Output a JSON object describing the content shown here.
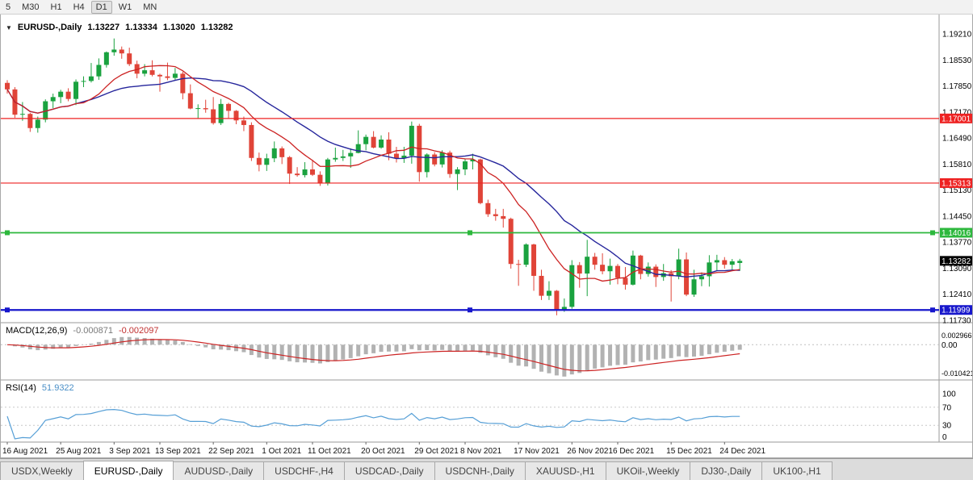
{
  "toolbar": {
    "timeframes": [
      {
        "label": "5",
        "active": false
      },
      {
        "label": "M30",
        "active": false
      },
      {
        "label": "H1",
        "active": false
      },
      {
        "label": "H4",
        "active": false
      },
      {
        "label": "D1",
        "active": true
      },
      {
        "label": "W1",
        "active": false
      },
      {
        "label": "MN",
        "active": false
      }
    ]
  },
  "chart_header": {
    "collapse_icon": "▼",
    "title": "EURUSD-,Daily",
    "open": "1.13227",
    "high": "1.13334",
    "low": "1.13020",
    "close": "1.13282"
  },
  "price_axis": [
    "1.19210",
    "1.18530",
    "1.17850",
    "1.17170",
    "1.16490",
    "1.15810",
    "1.15130",
    "1.14450",
    "1.13770",
    "1.13090",
    "1.12410",
    "1.11730"
  ],
  "hlines": [
    {
      "price": 1.17001,
      "label": "1.17001",
      "color": "#ee2222",
      "width": 1.2,
      "handles": false
    },
    {
      "price": 1.15313,
      "label": "1.15313",
      "color": "#ee2222",
      "width": 1.2,
      "handles": false
    },
    {
      "price": 1.14016,
      "label": "1.14016",
      "color": "#2db83d",
      "width": 1.8,
      "handles": true
    },
    {
      "price": 1.11999,
      "label": "1.11999",
      "color": "#1717cc",
      "width": 2.2,
      "handles": true
    }
  ],
  "current_price": {
    "label": "1.13282",
    "price": 1.13282,
    "tag_color": "#000000"
  },
  "macd_panel": {
    "title": "MACD(12,26,9)",
    "value_macd": "-0.000871",
    "value_signal": "-0.002097",
    "axis_max": "0.002966",
    "axis_zero": "0.00",
    "axis_min": "-0.010421",
    "max": 0.002966,
    "min": -0.010421,
    "histogram_color": "#b2b2b2",
    "signal_color": "#cc2222"
  },
  "rsi_panel": {
    "title": "RSI(14)",
    "value": "51.9322",
    "axis": [
      "100",
      "70",
      "30",
      "0"
    ],
    "levels": [
      70,
      30
    ],
    "line_color": "#569fd6"
  },
  "x_axis_labels": [
    "16 Aug 2021",
    "25 Aug 2021",
    "3 Sep 2021",
    "13 Sep 2021",
    "22 Sep 2021",
    "1 Oct 2021",
    "11 Oct 2021",
    "20 Oct 2021",
    "29 Oct 2021",
    "8 Nov 2021",
    "17 Nov 2021",
    "26 Nov 2021",
    "6 Dec 2021",
    "15 Dec 2021",
    "24 Dec 2021"
  ],
  "tabs": [
    {
      "label": "USDX,Weekly",
      "active": false
    },
    {
      "label": "EURUSD-,Daily",
      "active": true
    },
    {
      "label": "AUDUSD-,Daily",
      "active": false
    },
    {
      "label": "USDCHF-,H4",
      "active": false
    },
    {
      "label": "USDCAD-,Daily",
      "active": false
    },
    {
      "label": "USDCNH-,Daily",
      "active": false
    },
    {
      "label": "XAUUSD-,H1",
      "active": false
    },
    {
      "label": "UKOil-,Weekly",
      "active": false
    },
    {
      "label": "DJ30-,Daily",
      "active": false
    },
    {
      "label": "UK100-,H1",
      "active": false
    }
  ],
  "chart_data": {
    "type": "candlestick",
    "title": "EURUSD-,Daily",
    "price_min": 1.1173,
    "price_max": 1.1921,
    "up_color": "#1aa23f",
    "down_color": "#e04438",
    "ma_fast": {
      "period": 10,
      "color": "#cc2222"
    },
    "ma_slow": {
      "period": 20,
      "color": "#26269c"
    },
    "indicators": [
      "MACD(12,26,9)",
      "RSI(14)"
    ],
    "candles": [
      [
        "2021-08-16",
        1.1793,
        1.18,
        1.1765,
        1.1776
      ],
      [
        "2021-08-17",
        1.1776,
        1.1782,
        1.1702,
        1.171
      ],
      [
        "2021-08-18",
        1.171,
        1.1743,
        1.1694,
        1.1712
      ],
      [
        "2021-08-19",
        1.1712,
        1.1715,
        1.1665,
        1.1675
      ],
      [
        "2021-08-20",
        1.1675,
        1.1705,
        1.1663,
        1.1697
      ],
      [
        "2021-08-23",
        1.1697,
        1.175,
        1.169,
        1.1745
      ],
      [
        "2021-08-24",
        1.1745,
        1.1765,
        1.1727,
        1.1756
      ],
      [
        "2021-08-25",
        1.1756,
        1.1775,
        1.174,
        1.177
      ],
      [
        "2021-08-26",
        1.177,
        1.1779,
        1.1745,
        1.1751
      ],
      [
        "2021-08-27",
        1.1751,
        1.1802,
        1.1735,
        1.1796
      ],
      [
        "2021-08-30",
        1.1796,
        1.181,
        1.1782,
        1.1798
      ],
      [
        "2021-08-31",
        1.1798,
        1.1845,
        1.1794,
        1.181
      ],
      [
        "2021-09-01",
        1.181,
        1.1857,
        1.1801,
        1.184
      ],
      [
        "2021-09-02",
        1.184,
        1.1875,
        1.1833,
        1.1873
      ],
      [
        "2021-09-03",
        1.1873,
        1.1909,
        1.1864,
        1.188
      ],
      [
        "2021-09-06",
        1.188,
        1.1888,
        1.1856,
        1.187
      ],
      [
        "2021-09-07",
        1.187,
        1.1885,
        1.1837,
        1.1842
      ],
      [
        "2021-09-08",
        1.1842,
        1.1851,
        1.1805,
        1.1817
      ],
      [
        "2021-09-09",
        1.1817,
        1.1842,
        1.181,
        1.1826
      ],
      [
        "2021-09-10",
        1.1826,
        1.1852,
        1.181,
        1.1814
      ],
      [
        "2021-09-13",
        1.1814,
        1.1817,
        1.177,
        1.181
      ],
      [
        "2021-09-14",
        1.181,
        1.1846,
        1.18,
        1.1806
      ],
      [
        "2021-09-15",
        1.1806,
        1.1832,
        1.18,
        1.1817
      ],
      [
        "2021-09-16",
        1.1817,
        1.1822,
        1.175,
        1.1766
      ],
      [
        "2021-09-17",
        1.1766,
        1.1789,
        1.1724,
        1.1726
      ],
      [
        "2021-09-20",
        1.1726,
        1.1737,
        1.17,
        1.1727
      ],
      [
        "2021-09-21",
        1.1727,
        1.1749,
        1.1715,
        1.1724
      ],
      [
        "2021-09-22",
        1.1724,
        1.1756,
        1.1684,
        1.1688
      ],
      [
        "2021-09-23",
        1.1688,
        1.1751,
        1.1683,
        1.1738
      ],
      [
        "2021-09-24",
        1.1738,
        1.1741,
        1.1701,
        1.172
      ],
      [
        "2021-09-27",
        1.172,
        1.1722,
        1.1685,
        1.1695
      ],
      [
        "2021-09-28",
        1.1695,
        1.1705,
        1.1667,
        1.1683
      ],
      [
        "2021-09-29",
        1.1683,
        1.169,
        1.1589,
        1.1597
      ],
      [
        "2021-09-30",
        1.1597,
        1.1611,
        1.1562,
        1.1579
      ],
      [
        "2021-10-01",
        1.1579,
        1.1608,
        1.1563,
        1.1596
      ],
      [
        "2021-10-04",
        1.1596,
        1.164,
        1.1586,
        1.1622
      ],
      [
        "2021-10-05",
        1.1622,
        1.1627,
        1.1581,
        1.1599
      ],
      [
        "2021-10-06",
        1.1599,
        1.1602,
        1.1529,
        1.1556
      ],
      [
        "2021-10-07",
        1.1556,
        1.1573,
        1.1548,
        1.1552
      ],
      [
        "2021-10-08",
        1.1552,
        1.1586,
        1.1546,
        1.1567
      ],
      [
        "2021-10-11",
        1.1567,
        1.1592,
        1.155,
        1.1553
      ],
      [
        "2021-10-12",
        1.1553,
        1.1562,
        1.1524,
        1.153
      ],
      [
        "2021-10-13",
        1.153,
        1.1597,
        1.1525,
        1.1593
      ],
      [
        "2021-10-14",
        1.1593,
        1.1624,
        1.1587,
        1.1597
      ],
      [
        "2021-10-15",
        1.1597,
        1.1618,
        1.1589,
        1.1601
      ],
      [
        "2021-10-18",
        1.1601,
        1.1622,
        1.1571,
        1.161
      ],
      [
        "2021-10-19",
        1.161,
        1.1669,
        1.1609,
        1.1633
      ],
      [
        "2021-10-20",
        1.1633,
        1.1658,
        1.1617,
        1.1652
      ],
      [
        "2021-10-21",
        1.1652,
        1.1667,
        1.1622,
        1.1624
      ],
      [
        "2021-10-22",
        1.1624,
        1.1656,
        1.1621,
        1.1645
      ],
      [
        "2021-10-25",
        1.1645,
        1.1664,
        1.1591,
        1.1608
      ],
      [
        "2021-10-26",
        1.1608,
        1.1626,
        1.1585,
        1.1596
      ],
      [
        "2021-10-27",
        1.1596,
        1.1626,
        1.1584,
        1.1603
      ],
      [
        "2021-10-28",
        1.1603,
        1.1692,
        1.1582,
        1.1681
      ],
      [
        "2021-10-29",
        1.1681,
        1.1686,
        1.1535,
        1.156
      ],
      [
        "2021-11-01",
        1.156,
        1.1609,
        1.1546,
        1.1606
      ],
      [
        "2021-11-02",
        1.1606,
        1.1612,
        1.1575,
        1.158
      ],
      [
        "2021-11-03",
        1.158,
        1.1617,
        1.1572,
        1.1611
      ],
      [
        "2021-11-04",
        1.1611,
        1.1616,
        1.1545,
        1.1555
      ],
      [
        "2021-11-05",
        1.1555,
        1.1573,
        1.1513,
        1.1567
      ],
      [
        "2021-11-08",
        1.1567,
        1.1595,
        1.1552,
        1.1588
      ],
      [
        "2021-11-09",
        1.1588,
        1.1608,
        1.1567,
        1.1593
      ],
      [
        "2021-11-10",
        1.1593,
        1.1595,
        1.1476,
        1.1479
      ],
      [
        "2021-11-11",
        1.1479,
        1.1488,
        1.1443,
        1.145
      ],
      [
        "2021-11-12",
        1.145,
        1.1464,
        1.1433,
        1.1445
      ],
      [
        "2021-11-15",
        1.1445,
        1.1464,
        1.1415,
        1.1438
      ],
      [
        "2021-11-16",
        1.1438,
        1.1441,
        1.1308,
        1.132
      ],
      [
        "2021-11-17",
        1.132,
        1.1331,
        1.1263,
        1.1318
      ],
      [
        "2021-11-18",
        1.1318,
        1.1374,
        1.1312,
        1.1371
      ],
      [
        "2021-11-19",
        1.1371,
        1.1373,
        1.125,
        1.1289
      ],
      [
        "2021-11-22",
        1.1289,
        1.1305,
        1.1226,
        1.1237
      ],
      [
        "2021-11-23",
        1.1237,
        1.1275,
        1.1226,
        1.125
      ],
      [
        "2021-11-24",
        1.125,
        1.1252,
        1.1186,
        1.12
      ],
      [
        "2021-11-25",
        1.12,
        1.123,
        1.1195,
        1.1208
      ],
      [
        "2021-11-26",
        1.1208,
        1.133,
        1.1203,
        1.1317
      ],
      [
        "2021-11-29",
        1.1317,
        1.1325,
        1.1258,
        1.1295
      ],
      [
        "2021-11-30",
        1.1295,
        1.1383,
        1.1236,
        1.1339
      ],
      [
        "2021-12-01",
        1.1339,
        1.1349,
        1.1305,
        1.1318
      ],
      [
        "2021-12-02",
        1.1318,
        1.1348,
        1.1293,
        1.1301
      ],
      [
        "2021-12-03",
        1.1301,
        1.1334,
        1.1266,
        1.1315
      ],
      [
        "2021-12-06",
        1.1315,
        1.132,
        1.1267,
        1.1284
      ],
      [
        "2021-12-07",
        1.1284,
        1.1312,
        1.1253,
        1.1266
      ],
      [
        "2021-12-08",
        1.1266,
        1.1355,
        1.1264,
        1.1342
      ],
      [
        "2021-12-09",
        1.1342,
        1.1344,
        1.128,
        1.1294
      ],
      [
        "2021-12-10",
        1.1294,
        1.1324,
        1.1287,
        1.1313
      ],
      [
        "2021-12-13",
        1.1313,
        1.1319,
        1.126,
        1.1286
      ],
      [
        "2021-12-14",
        1.1286,
        1.132,
        1.1276,
        1.1296
      ],
      [
        "2021-12-15",
        1.1296,
        1.1304,
        1.1222,
        1.1288
      ],
      [
        "2021-12-16",
        1.1288,
        1.136,
        1.128,
        1.1332
      ],
      [
        "2021-12-17",
        1.1332,
        1.135,
        1.1236,
        1.124
      ],
      [
        "2021-12-20",
        1.124,
        1.1305,
        1.1234,
        1.128
      ],
      [
        "2021-12-21",
        1.128,
        1.1298,
        1.1262,
        1.1288
      ],
      [
        "2021-12-22",
        1.1288,
        1.1343,
        1.1261,
        1.1324
      ],
      [
        "2021-12-23",
        1.1324,
        1.1344,
        1.1303,
        1.133
      ],
      [
        "2021-12-24",
        1.133,
        1.1338,
        1.1308,
        1.1318
      ],
      [
        "2021-12-27",
        1.1318,
        1.1333,
        1.1302,
        1.1327
      ],
      [
        "2021-12-28",
        1.13227,
        1.13334,
        1.1302,
        1.13282
      ]
    ]
  }
}
